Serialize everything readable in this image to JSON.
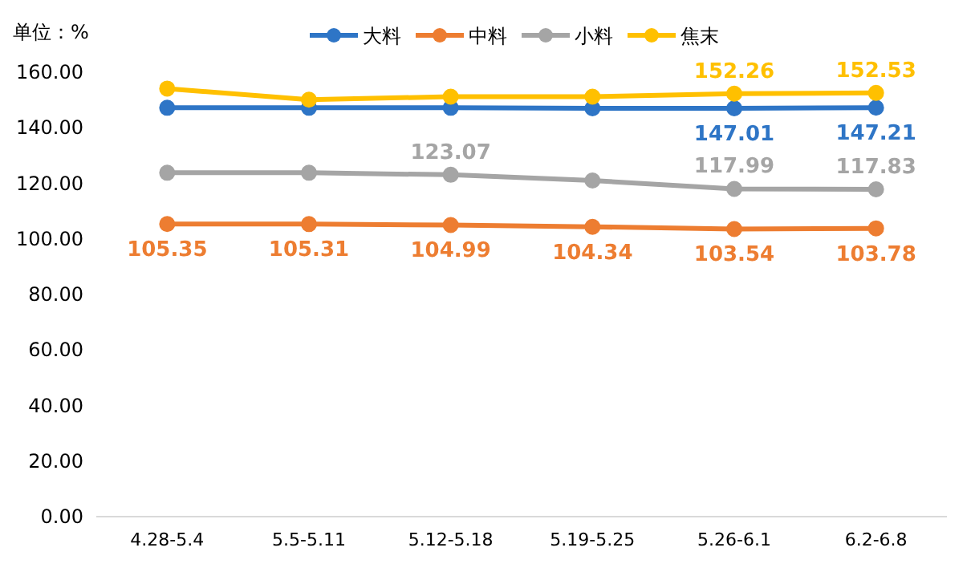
{
  "chart_data": {
    "type": "line",
    "ylabel": "单位：%",
    "categories": [
      "4.28-5.4",
      "5.5-5.11",
      "5.12-5.18",
      "5.19-5.25",
      "5.26-6.1",
      "6.2-6.8"
    ],
    "series": [
      {
        "name": "大料",
        "color": "#2e75c6",
        "values": [
          147.2,
          147.2,
          147.2,
          147.0,
          147.01,
          147.21
        ],
        "value_labels": [
          null,
          null,
          null,
          null,
          "147.01",
          "147.21"
        ]
      },
      {
        "name": "中料",
        "color": "#ed7d31",
        "values": [
          105.35,
          105.31,
          104.99,
          104.34,
          103.54,
          103.78
        ],
        "value_labels": [
          "105.35",
          "105.31",
          "104.99",
          "104.34",
          "103.54",
          "103.78"
        ]
      },
      {
        "name": "小料",
        "color": "#a5a5a5",
        "values": [
          123.8,
          123.8,
          123.07,
          121.0,
          117.99,
          117.83
        ],
        "value_labels": [
          null,
          null,
          "123.07",
          null,
          "117.99",
          "117.83"
        ]
      },
      {
        "name": "焦末",
        "color": "#ffc000",
        "values": [
          154.1,
          150.1,
          151.2,
          151.2,
          152.26,
          152.53
        ],
        "value_labels": [
          null,
          null,
          null,
          null,
          "152.26",
          "152.53"
        ]
      }
    ],
    "ylim": [
      0,
      160
    ],
    "yticks": [
      {
        "value": 0,
        "label": "0.00"
      },
      {
        "value": 20,
        "label": "20.00"
      },
      {
        "value": 40,
        "label": "40.00"
      },
      {
        "value": 60,
        "label": "60.00"
      },
      {
        "value": 80,
        "label": "80.00"
      },
      {
        "value": 100,
        "label": "100.00"
      },
      {
        "value": 120,
        "label": "120.00"
      },
      {
        "value": 140,
        "label": "140.00"
      },
      {
        "value": 160,
        "label": "160.00"
      }
    ],
    "grid": false,
    "legend": "top",
    "marker": "circle",
    "line_style": "solid"
  }
}
